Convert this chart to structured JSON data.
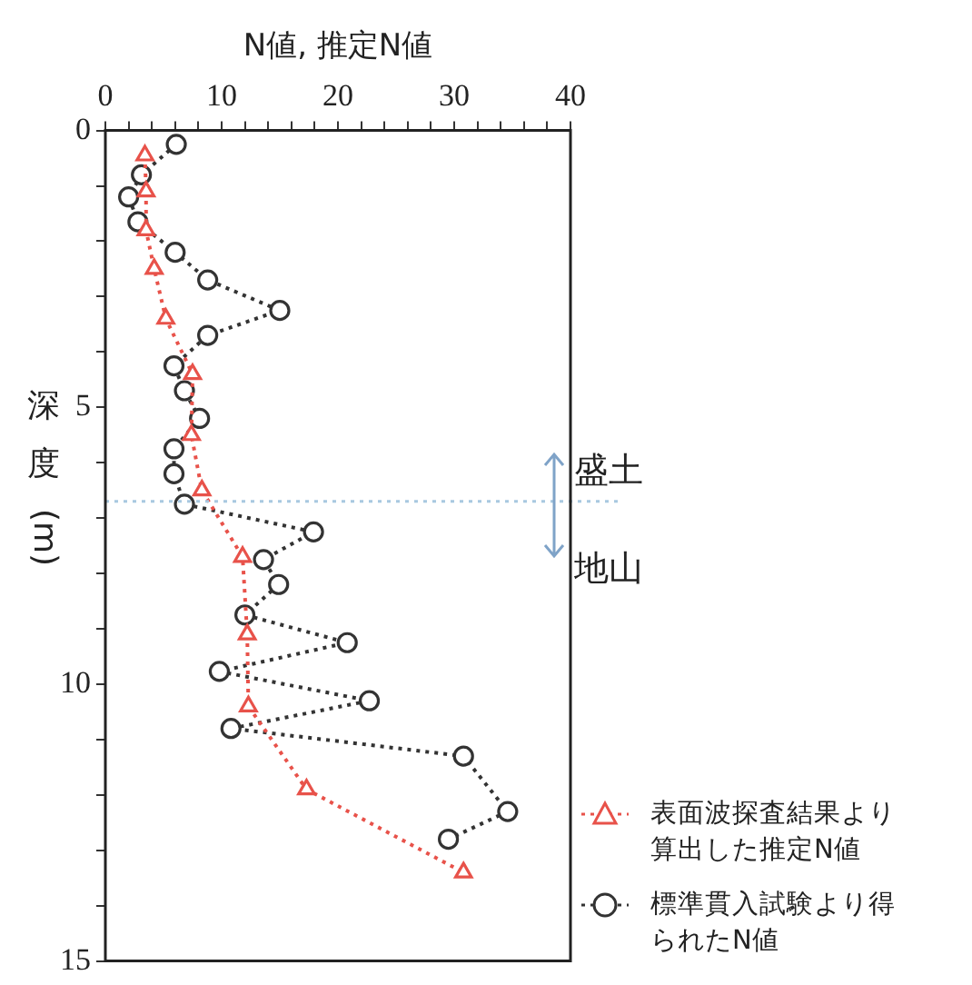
{
  "chart_data": {
    "type": "line",
    "xlabel": "N値, 推定N値",
    "ylabel": "深度 (m)",
    "xlim": [
      0,
      40
    ],
    "xticks": [
      0,
      {
        "value": 2,
        "label": null
      },
      {
        "value": 4,
        "label": null
      },
      {
        "value": 6,
        "label": null
      },
      {
        "value": 8,
        "label": null
      },
      10,
      {
        "value": 12,
        "label": null
      },
      {
        "value": 14,
        "label": null
      },
      {
        "value": 16,
        "label": null
      },
      {
        "value": 18,
        "label": null
      },
      20,
      {
        "value": 22,
        "label": null
      },
      {
        "value": 24,
        "label": null
      },
      {
        "value": 26,
        "label": null
      },
      {
        "value": 28,
        "label": null
      },
      30,
      {
        "value": 32,
        "label": null
      },
      {
        "value": 34,
        "label": null
      },
      {
        "value": 36,
        "label": null
      },
      {
        "value": 38,
        "label": null
      },
      40
    ],
    "ylim": [
      15,
      0
    ],
    "yticks": [
      0,
      {
        "value": 1,
        "label": null
      },
      {
        "value": 2,
        "label": null
      },
      {
        "value": 3,
        "label": null
      },
      {
        "value": 4,
        "label": null
      },
      5,
      {
        "value": 6,
        "label": null
      },
      {
        "value": 7,
        "label": null
      },
      {
        "value": 8,
        "label": null
      },
      {
        "value": 9,
        "label": null
      },
      10,
      {
        "value": 11,
        "label": null
      },
      {
        "value": 12,
        "label": null
      },
      {
        "value": 13,
        "label": null
      },
      {
        "value": 14,
        "label": null
      },
      15
    ],
    "grid": false,
    "legend": "bottom right",
    "line_style": "dotted",
    "series": [
      {
        "name": "表面波探査結果より算出した推定N値",
        "color": "#e8524a",
        "marker": "triangle",
        "x": [
          3.4,
          3.5,
          3.5,
          4.2,
          5.2,
          7.5,
          7.4,
          8.3,
          11.8,
          12.2,
          12.3,
          17.3,
          30.8
        ],
        "values": [
          0.45,
          1.1,
          1.8,
          2.5,
          3.4,
          4.4,
          5.5,
          6.5,
          7.7,
          9.1,
          10.4,
          11.9,
          13.4
        ]
      },
      {
        "name": "標準貫入試験より得られたN値",
        "color": "#333333",
        "marker": "circle",
        "x": [
          6.1,
          3.1,
          2,
          2.8,
          6,
          8.8,
          15,
          8.8,
          5.9,
          6.8,
          8.1,
          5.9,
          5.9,
          6.8,
          17.9,
          13.6,
          14.9,
          12,
          20.8,
          9.8,
          22.7,
          10.8,
          30.8,
          34.6,
          29.5
        ],
        "values": [
          0.25,
          0.8,
          1.2,
          1.65,
          2.2,
          2.7,
          3.25,
          3.7,
          4.25,
          4.7,
          5.2,
          5.75,
          6.2,
          6.75,
          7.25,
          7.75,
          8.2,
          8.75,
          9.25,
          9.77,
          10.3,
          10.8,
          11.3,
          12.3,
          12.8
        ]
      }
    ],
    "ref_lines": [
      {
        "axis": "y",
        "value": 6.7,
        "color": "#a8c8e0",
        "line_style": "dotted"
      }
    ],
    "annotations": [
      "盛土",
      "地山"
    ]
  }
}
